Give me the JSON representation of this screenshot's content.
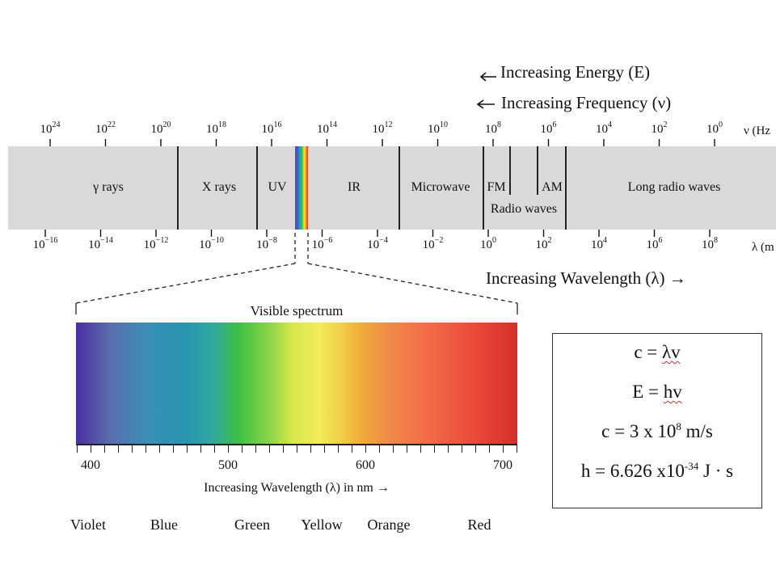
{
  "header": {
    "energy": "Increasing Energy (E)",
    "frequency": "Increasing Frequency (ν)",
    "wavelength": "Increasing Wavelength (λ)"
  },
  "frequency_axis": {
    "unit_label": "ν (Hz",
    "ticks": [
      {
        "base": "10",
        "exp": "24"
      },
      {
        "base": "10",
        "exp": "22"
      },
      {
        "base": "10",
        "exp": "20"
      },
      {
        "base": "10",
        "exp": "18"
      },
      {
        "base": "10",
        "exp": "16"
      },
      {
        "base": "10",
        "exp": "14"
      },
      {
        "base": "10",
        "exp": "12"
      },
      {
        "base": "10",
        "exp": "10"
      },
      {
        "base": "10",
        "exp": "8"
      },
      {
        "base": "10",
        "exp": "6"
      },
      {
        "base": "10",
        "exp": "4"
      },
      {
        "base": "10",
        "exp": "2"
      },
      {
        "base": "10",
        "exp": "0"
      }
    ]
  },
  "wavelength_axis": {
    "unit_label": "λ (m",
    "ticks": [
      {
        "base": "10",
        "exp": "−16"
      },
      {
        "base": "10",
        "exp": "−14"
      },
      {
        "base": "10",
        "exp": "−12"
      },
      {
        "base": "10",
        "exp": "−10"
      },
      {
        "base": "10",
        "exp": "−8"
      },
      {
        "base": "10",
        "exp": "−6"
      },
      {
        "base": "10",
        "exp": "−4"
      },
      {
        "base": "10",
        "exp": "−2"
      },
      {
        "base": "10",
        "exp": "0"
      },
      {
        "base": "10",
        "exp": "2"
      },
      {
        "base": "10",
        "exp": "4"
      },
      {
        "base": "10",
        "exp": "6"
      },
      {
        "base": "10",
        "exp": "8"
      }
    ]
  },
  "regions": {
    "gamma": "γ rays",
    "xray": "X rays",
    "uv": "UV",
    "ir": "IR",
    "microwave": "Microwave",
    "fm": "FM",
    "am": "AM",
    "radio": "Radio waves",
    "long_radio": "Long radio waves"
  },
  "visible": {
    "title": "Visible spectrum",
    "ticks": [
      "400",
      "500",
      "600",
      "700"
    ],
    "axis_label": "Increasing Wavelength (λ) in nm →",
    "colors": [
      "Violet",
      "Blue",
      "Green",
      "Yellow",
      "Orange",
      "Red"
    ]
  },
  "formulas": {
    "f1_lhs": "c = ",
    "f1_rhs": "λv",
    "f2_lhs": "E = ",
    "f2_rhs": "hv",
    "f3_main": "c = 3 x 10",
    "f3_exp": "8",
    "f3_unit": " m/s",
    "f4_main": "h = 6.626 x10",
    "f4_exp": "-34",
    "f4_unit": " J · s"
  },
  "colors": {
    "band": "#d9d9d9",
    "ink": "#111111"
  }
}
